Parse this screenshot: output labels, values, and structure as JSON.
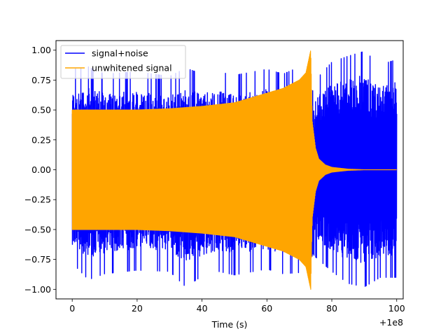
{
  "chart_data": {
    "type": "line",
    "title": "",
    "xlabel": "Time (s)",
    "ylabel": "",
    "x_offset_label": "+1e8",
    "xlim": [
      -5,
      102
    ],
    "ylim": [
      -1.08,
      1.08
    ],
    "x_ticks": [
      0,
      20,
      40,
      60,
      80,
      100
    ],
    "x_tick_labels": [
      "0",
      "20",
      "40",
      "60",
      "80",
      "100"
    ],
    "y_ticks": [
      -1.0,
      -0.75,
      -0.5,
      -0.25,
      0.0,
      0.25,
      0.5,
      0.75,
      1.0
    ],
    "y_tick_labels": [
      "−1.00",
      "−0.75",
      "−0.50",
      "−0.25",
      "0.00",
      "0.25",
      "0.50",
      "0.75",
      "1.00"
    ],
    "grid": false,
    "legend_position": "upper-left",
    "series": [
      {
        "name": "signal+noise",
        "color": "#0000ff",
        "envelope": {
          "x": [
            0,
            5,
            10,
            20,
            30,
            35,
            40,
            45,
            50,
            60,
            65,
            70,
            73.5,
            74,
            75,
            80,
            85,
            90,
            95,
            100
          ],
          "upper": [
            0.84,
            0.86,
            0.8,
            0.82,
            0.78,
            0.85,
            0.8,
            0.82,
            0.79,
            0.84,
            0.8,
            0.86,
            0.9,
            0.65,
            0.75,
            0.9,
            0.95,
            0.99,
            0.88,
            0.92
          ],
          "lower": [
            -0.78,
            -0.92,
            -0.87,
            -0.84,
            -0.85,
            -0.98,
            -0.89,
            -0.85,
            -0.88,
            -0.83,
            -0.87,
            -0.86,
            -0.9,
            -0.7,
            -0.73,
            -0.85,
            -0.95,
            -0.98,
            -0.9,
            -0.9
          ]
        }
      },
      {
        "name": "unwhitened signal",
        "color": "#ffa500",
        "envelope": {
          "x": [
            0,
            10,
            20,
            30,
            40,
            50,
            60,
            65,
            70,
            72,
            73.5,
            74,
            75,
            76,
            78,
            80,
            85,
            90,
            100
          ],
          "upper": [
            0.5,
            0.5,
            0.5,
            0.51,
            0.53,
            0.56,
            0.64,
            0.68,
            0.75,
            0.81,
            1.0,
            0.4,
            0.18,
            0.09,
            0.04,
            0.02,
            0.005,
            0.0,
            0.0
          ],
          "lower": [
            -0.5,
            -0.5,
            -0.5,
            -0.51,
            -0.53,
            -0.56,
            -0.64,
            -0.68,
            -0.75,
            -0.81,
            -1.0,
            -0.4,
            -0.18,
            -0.09,
            -0.04,
            -0.02,
            -0.005,
            0.0,
            0.0
          ]
        }
      }
    ]
  }
}
